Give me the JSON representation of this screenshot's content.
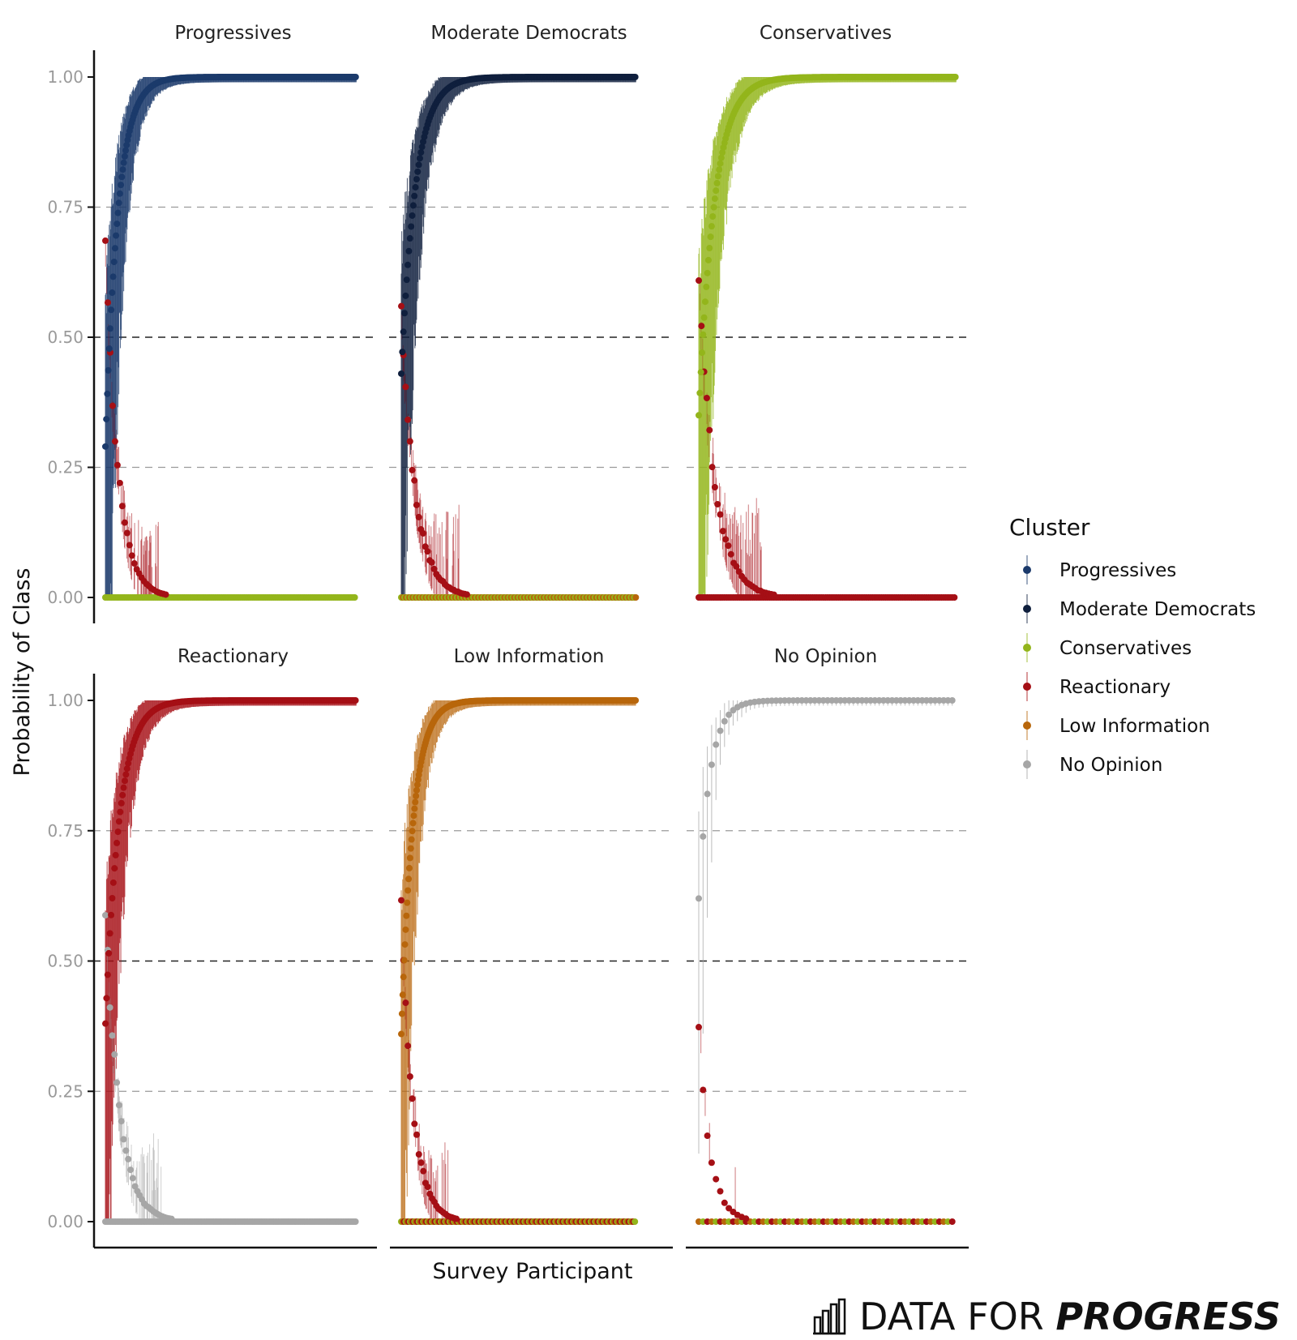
{
  "chart_data": {
    "type": "scatter",
    "ylabel": "Probability of Class",
    "xlabel": "Survey Participant",
    "ylim": [
      0,
      1
    ],
    "yticks": [
      "0.00",
      "0.25",
      "0.50",
      "0.75",
      "1.00"
    ],
    "grid": "dashed horizontal at 0.25, 0.50, 0.75",
    "legend": {
      "title": "Cluster",
      "placement": "right",
      "entries": [
        {
          "name": "Progressives",
          "color": "#1b3a6b"
        },
        {
          "name": "Moderate Democrats",
          "color": "#0f1f3d"
        },
        {
          "name": "Conservatives",
          "color": "#93b51b"
        },
        {
          "name": "Reactionary",
          "color": "#a50f15"
        },
        {
          "name": "Low Information",
          "color": "#b8660b"
        },
        {
          "name": "No Opinion",
          "color": "#a6a6a6"
        }
      ]
    },
    "panels": [
      {
        "title": "Progressives",
        "main_color": "#1b3a6b",
        "n_participants": 520,
        "p_start": 0.29,
        "p_reach_one_at": 0.45,
        "secondary_color": "#a50f15",
        "baseline_colors": [
          "#93b51b",
          "#b8660b"
        ]
      },
      {
        "title": "Moderate Democrats",
        "main_color": "#0f1f3d",
        "n_participants": 430,
        "p_start": 0.43,
        "p_reach_one_at": 0.55,
        "secondary_color": "#a50f15",
        "baseline_colors": [
          "#93b51b",
          "#b8660b"
        ]
      },
      {
        "title": "Conservatives",
        "main_color": "#93b51b",
        "n_participants": 480,
        "p_start": 0.35,
        "p_reach_one_at": 0.55,
        "secondary_color": "#a50f15",
        "baseline_colors": [
          "#a50f15"
        ]
      },
      {
        "title": "Reactionary",
        "main_color": "#a50f15",
        "n_participants": 440,
        "p_start": 0.38,
        "p_reach_one_at": 0.5,
        "secondary_color": "#a6a6a6",
        "baseline_colors": [
          "#a6a6a6"
        ]
      },
      {
        "title": "Low Information",
        "main_color": "#b8660b",
        "n_participants": 320,
        "p_start": 0.36,
        "p_reach_one_at": 0.45,
        "secondary_color": "#a50f15",
        "baseline_colors": [
          "#93b51b",
          "#a50f15",
          "#b8660b"
        ]
      },
      {
        "title": "No Opinion",
        "main_color": "#a6a6a6",
        "n_participants": 60,
        "p_start": 0.62,
        "p_reach_one_at": 0.4,
        "secondary_color": "#a50f15",
        "baseline_colors": [
          "#b8660b",
          "#93b51b",
          "#a50f15"
        ]
      }
    ]
  },
  "branding": {
    "logo_text_regular": "DATA FOR ",
    "logo_text_bold": "PROGRESS",
    "logo_icon": "bar-chart-icon"
  }
}
